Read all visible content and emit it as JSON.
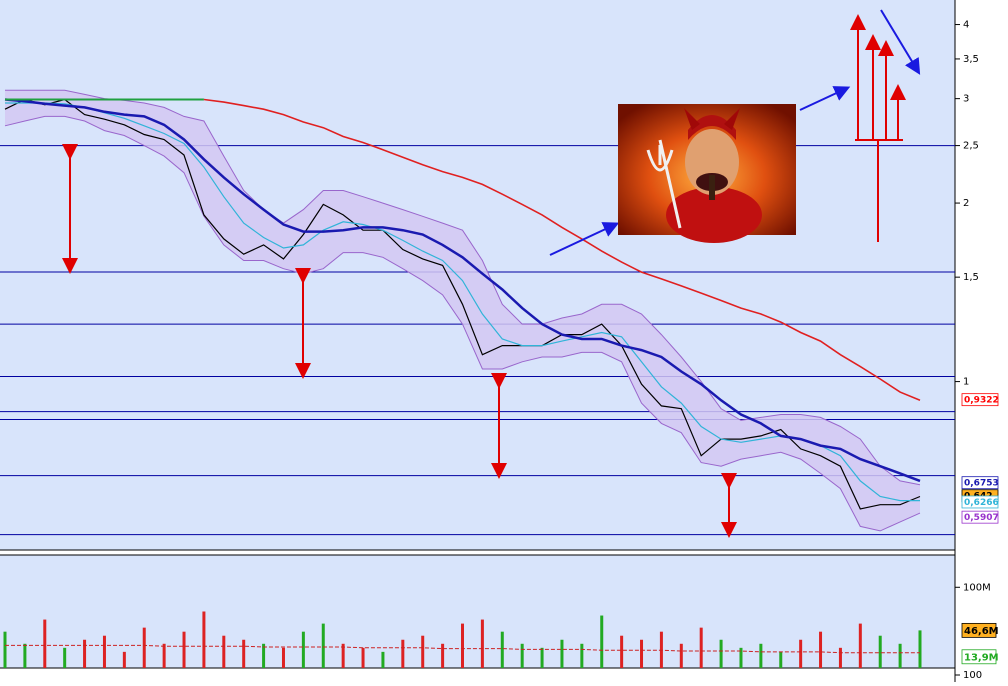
{
  "chart_data": {
    "type": "line",
    "yscale": "log",
    "ylim": [
      0.52,
      4.4
    ],
    "yticks": [
      4,
      {
        "value": 3.5,
        "label": "3,5"
      },
      3,
      {
        "value": 2.5,
        "label": "2,5"
      },
      2,
      {
        "value": 1.5,
        "label": "1,5"
      },
      1
    ],
    "levels": [
      2.5,
      1.53,
      1.25,
      1.02,
      0.89,
      0.863,
      0.694,
      0.552
    ],
    "level_color": "#0000a0",
    "close": {
      "color": "#000000",
      "values": [
        2.88,
        2.99,
        2.93,
        2.99,
        2.82,
        2.77,
        2.71,
        2.61,
        2.56,
        2.41,
        1.91,
        1.74,
        1.64,
        1.7,
        1.61,
        1.77,
        1.99,
        1.91,
        1.8,
        1.8,
        1.67,
        1.61,
        1.57,
        1.35,
        1.11,
        1.15,
        1.15,
        1.15,
        1.2,
        1.2,
        1.25,
        1.15,
        0.99,
        0.91,
        0.9,
        0.75,
        0.8,
        0.8,
        0.81,
        0.83,
        0.77,
        0.75,
        0.72,
        0.61,
        0.62,
        0.62,
        0.64
      ]
    },
    "bollinger": {
      "color": "#9966cc",
      "fill": "#d4c8f2",
      "upper": [
        3.1,
        3.1,
        3.1,
        3.1,
        3.05,
        3.0,
        2.98,
        2.95,
        2.9,
        2.8,
        2.75,
        2.4,
        2.1,
        1.95,
        1.85,
        1.95,
        2.1,
        2.1,
        2.05,
        2.0,
        1.95,
        1.9,
        1.85,
        1.8,
        1.6,
        1.35,
        1.25,
        1.25,
        1.28,
        1.3,
        1.35,
        1.35,
        1.3,
        1.2,
        1.1,
        1.0,
        0.9,
        0.86,
        0.87,
        0.88,
        0.88,
        0.87,
        0.84,
        0.8,
        0.72,
        0.68,
        0.67
      ],
      "lower": [
        2.7,
        2.75,
        2.8,
        2.8,
        2.75,
        2.65,
        2.6,
        2.5,
        2.4,
        2.25,
        1.9,
        1.7,
        1.6,
        1.6,
        1.55,
        1.52,
        1.55,
        1.65,
        1.65,
        1.62,
        1.55,
        1.48,
        1.4,
        1.25,
        1.05,
        1.05,
        1.08,
        1.1,
        1.1,
        1.12,
        1.12,
        1.08,
        0.92,
        0.85,
        0.82,
        0.73,
        0.72,
        0.74,
        0.75,
        0.76,
        0.74,
        0.7,
        0.66,
        0.57,
        0.56,
        0.58,
        0.6
      ]
    },
    "moving_averages": [
      {
        "color": "#30b4d8",
        "values": [
          2.95,
          2.95,
          2.95,
          2.94,
          2.9,
          2.84,
          2.78,
          2.7,
          2.62,
          2.52,
          2.3,
          2.05,
          1.85,
          1.75,
          1.68,
          1.7,
          1.8,
          1.86,
          1.84,
          1.8,
          1.73,
          1.66,
          1.6,
          1.48,
          1.3,
          1.18,
          1.15,
          1.15,
          1.17,
          1.19,
          1.21,
          1.19,
          1.08,
          0.98,
          0.92,
          0.84,
          0.8,
          0.79,
          0.8,
          0.81,
          0.8,
          0.78,
          0.75,
          0.68,
          0.64,
          0.63,
          0.63
        ]
      },
      {
        "color": "#1a1ab0",
        "values": [
          2.99,
          2.97,
          2.94,
          2.92,
          2.9,
          2.85,
          2.82,
          2.8,
          2.71,
          2.56,
          2.37,
          2.21,
          2.07,
          1.95,
          1.84,
          1.79,
          1.79,
          1.8,
          1.82,
          1.82,
          1.8,
          1.77,
          1.7,
          1.62,
          1.52,
          1.43,
          1.33,
          1.25,
          1.2,
          1.18,
          1.18,
          1.15,
          1.13,
          1.1,
          1.04,
          0.99,
          0.93,
          0.88,
          0.85,
          0.81,
          0.8,
          0.78,
          0.77,
          0.74,
          0.72,
          0.7,
          0.68
        ]
      },
      {
        "color": "#20a040",
        "values": [
          2.99,
          2.99,
          2.99,
          2.99,
          2.99,
          2.99,
          2.99,
          2.99,
          2.99,
          2.99,
          2.99,
          null,
          null,
          null,
          null,
          null,
          null,
          null,
          null,
          null,
          null,
          null,
          null,
          null,
          null,
          null,
          null,
          null,
          null,
          null,
          null,
          null,
          null,
          null,
          null,
          null,
          null,
          null,
          null,
          null,
          null,
          null,
          null,
          null,
          null,
          null,
          null
        ]
      },
      {
        "color": "#e02020",
        "values": [
          null,
          null,
          null,
          null,
          null,
          null,
          null,
          null,
          null,
          null,
          2.99,
          2.96,
          2.92,
          2.88,
          2.82,
          2.74,
          2.68,
          2.59,
          2.53,
          2.46,
          2.39,
          2.32,
          2.26,
          2.21,
          2.15,
          2.07,
          1.99,
          1.91,
          1.82,
          1.74,
          1.66,
          1.59,
          1.53,
          1.49,
          1.45,
          1.41,
          1.37,
          1.33,
          1.3,
          1.26,
          1.21,
          1.17,
          1.11,
          1.06,
          1.01,
          0.96,
          0.93
        ]
      }
    ],
    "price_labels": [
      {
        "value": 0.9322,
        "label": "0,9322",
        "color": "#ff0000",
        "fill": "#ffffff"
      },
      {
        "value": 0.6753,
        "label": "0,6753",
        "color": "#1a1ab0",
        "fill": "#ffffff"
      },
      {
        "value": 0.642,
        "label": "0,642",
        "color": "#000000",
        "fill": "#ffb020"
      },
      {
        "value": 0.6266,
        "label": "0,6266",
        "color": "#30b4d8",
        "fill": "#ffffff"
      },
      {
        "value": 0.5907,
        "label": "0,5907",
        "color": "#9933cc",
        "fill": "#ffffff"
      }
    ],
    "volume": {
      "ylim": [
        0,
        140
      ],
      "yticks": [
        {
          "value": 100,
          "label": "100M"
        }
      ],
      "up_color": "#22aa22",
      "down_color": "#dd2222",
      "values": [
        45,
        30,
        60,
        25,
        35,
        40,
        20,
        50,
        30,
        45,
        70,
        40,
        35,
        30,
        25,
        45,
        55,
        30,
        25,
        20,
        35,
        40,
        30,
        55,
        60,
        45,
        30,
        25,
        35,
        30,
        65,
        40,
        35,
        45,
        30,
        50,
        35,
        25,
        30,
        20,
        35,
        45,
        25,
        55,
        40,
        30,
        46.6
      ],
      "ma": {
        "color": "#cc2222",
        "values": [
          28,
          28,
          28,
          28,
          28,
          28,
          28,
          28,
          27,
          27,
          27,
          27,
          27,
          26,
          26,
          26,
          26,
          26,
          25,
          25,
          25,
          25,
          24,
          24,
          24,
          24,
          23,
          23,
          23,
          23,
          22,
          22,
          22,
          22,
          21,
          21,
          21,
          21,
          20,
          20,
          20,
          20,
          19,
          19,
          19,
          19,
          19
        ]
      },
      "labels": [
        {
          "value": 46.6,
          "label": "46,6M",
          "color": "#000000",
          "fill": "#ffb020"
        },
        {
          "value": 13.9,
          "label": "13,9M",
          "color": "#22aa22",
          "fill": "#ffffff"
        }
      ]
    },
    "lower_panel": {
      "yticks": [
        100
      ]
    }
  }
}
